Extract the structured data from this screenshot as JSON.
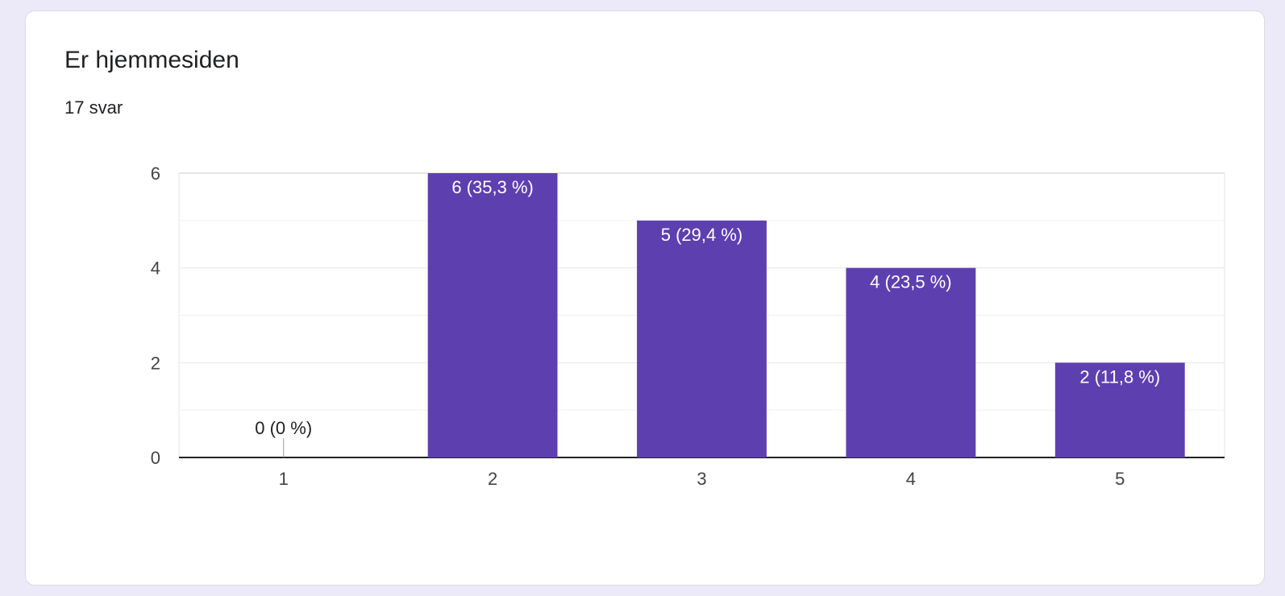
{
  "header": {
    "title": "Er hjemmesiden",
    "response_count": "17 svar"
  },
  "colors": {
    "bar": "#5e3fb0",
    "background": "#ece9f8",
    "gridline": "#e5e5e5",
    "axis": "#222222"
  },
  "chart_data": {
    "type": "bar",
    "title": "",
    "xlabel": "",
    "ylabel": "",
    "categories": [
      "1",
      "2",
      "3",
      "4",
      "5"
    ],
    "values": [
      0,
      6,
      5,
      4,
      2
    ],
    "data_labels": [
      "0 (0 %)",
      "6 (35,3 %)",
      "5 (29,4 %)",
      "4 (23,5 %)",
      "2 (11,8 %)"
    ],
    "y_ticks": [
      0,
      2,
      4,
      6
    ],
    "ylim": [
      0,
      6
    ],
    "grid": true,
    "legend": "none"
  }
}
